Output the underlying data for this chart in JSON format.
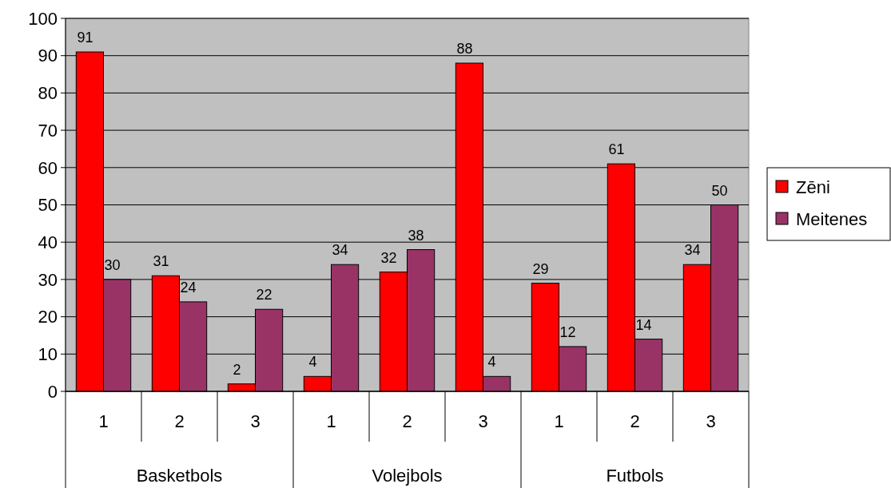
{
  "chart_data": {
    "type": "bar",
    "categories": [
      "1",
      "2",
      "3",
      "1",
      "2",
      "3",
      "1",
      "2",
      "3"
    ],
    "series": [
      {
        "name": "Zēni",
        "color": "#ff0000",
        "values": [
          91,
          31,
          2,
          4,
          32,
          88,
          29,
          61,
          34
        ]
      },
      {
        "name": "Meitenes",
        "color": "#993366",
        "values": [
          30,
          24,
          22,
          34,
          38,
          4,
          12,
          14,
          50
        ]
      }
    ],
    "annotations": [
      "Basketbols",
      "Volejbols",
      "Futbols"
    ],
    "ylim": [
      0,
      100
    ],
    "yticks": [
      0,
      10,
      20,
      30,
      40,
      50,
      60,
      70,
      80,
      90,
      100
    ],
    "grid": "y",
    "legend": "right",
    "data_labels": true
  }
}
